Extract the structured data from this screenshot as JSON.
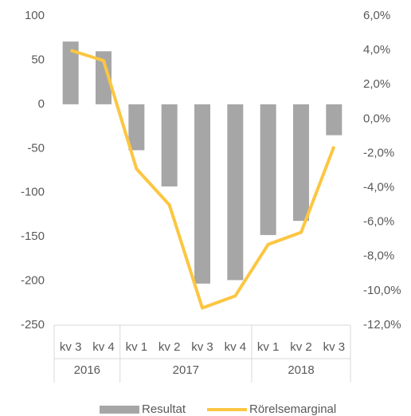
{
  "chart_data": {
    "type": "bar_line",
    "groups": [
      {
        "label": "2016",
        "categories": [
          "kv 3",
          "kv 4"
        ]
      },
      {
        "label": "2017",
        "categories": [
          "kv 1",
          "kv 2",
          "kv 3",
          "kv 4"
        ]
      },
      {
        "label": "2018",
        "categories": [
          "kv 1",
          "kv 2",
          "kv 3"
        ]
      }
    ],
    "series": [
      {
        "name": "Resultat",
        "type": "bar",
        "color": "#a6a6a6",
        "values": [
          71,
          60,
          -52,
          -93,
          -203,
          -199,
          -148,
          -132,
          -35
        ]
      },
      {
        "name": "Rörelsemarginal",
        "type": "line",
        "axis": "y2",
        "color": "#fcc641",
        "values": [
          4.0,
          3.4,
          -2.9,
          -5.0,
          -11.0,
          -10.3,
          -7.3,
          -6.6,
          -1.6
        ]
      }
    ],
    "ylim": [
      -250,
      100
    ],
    "yticks": [
      -250,
      -200,
      -150,
      -100,
      -50,
      0,
      50,
      100
    ],
    "y2lim": [
      -12,
      6
    ],
    "y2ticks": [
      {
        "value": -12,
        "label": "-12,0%"
      },
      {
        "value": -10,
        "label": "-10,0%"
      },
      {
        "value": -8,
        "label": "-8,0%"
      },
      {
        "value": -6,
        "label": "-6,0%"
      },
      {
        "value": -4,
        "label": "-4,0%"
      },
      {
        "value": -2,
        "label": "-2,0%"
      },
      {
        "value": 0,
        "label": "0,0%"
      },
      {
        "value": 2,
        "label": "2,0%"
      },
      {
        "value": 4,
        "label": "4,0%"
      },
      {
        "value": 6,
        "label": "6,0%"
      }
    ],
    "legend": "bottom"
  }
}
